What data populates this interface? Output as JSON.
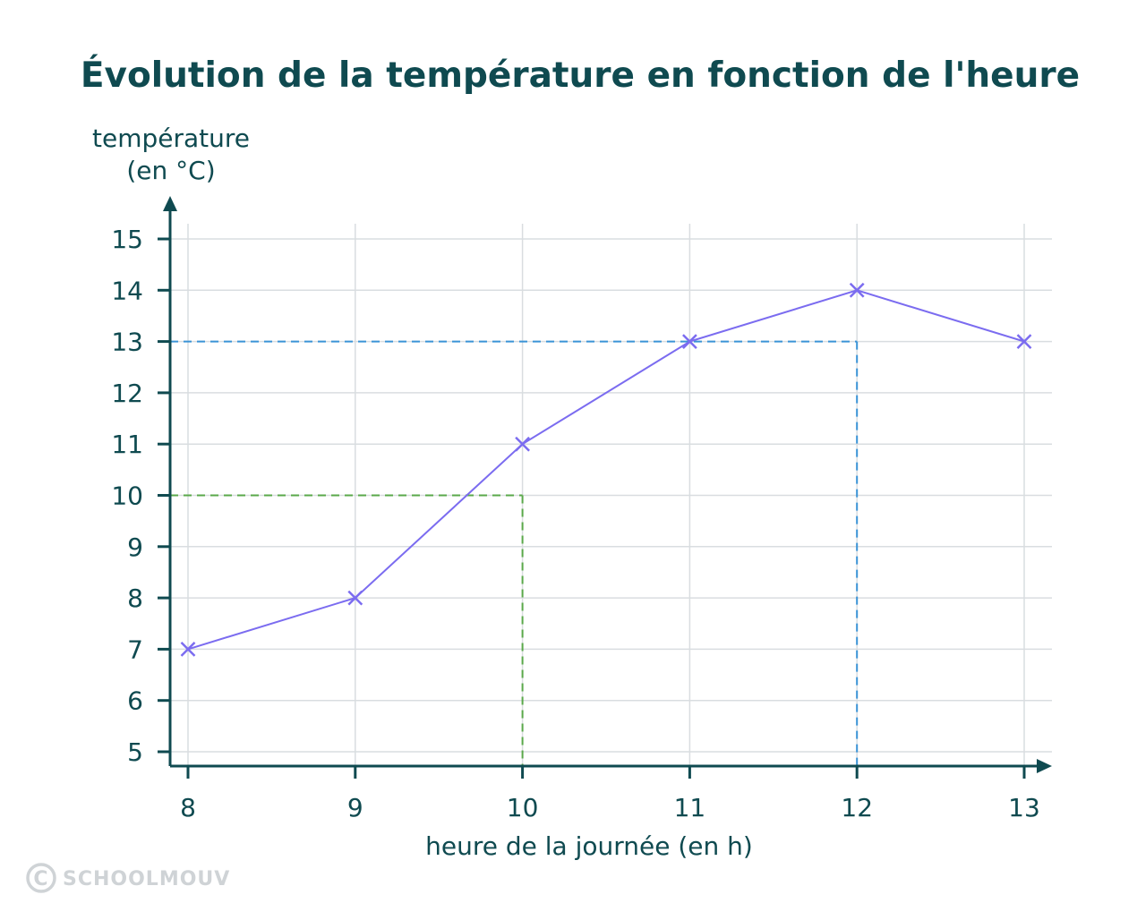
{
  "chart_data": {
    "type": "line",
    "title": "Évolution de la température en fonction de l'heure",
    "ylabel_line1": "température",
    "ylabel_line2": "(en °C)",
    "xlabel": "heure de la journée (en h)",
    "x": [
      8,
      9,
      10,
      11,
      12,
      13
    ],
    "values": [
      7,
      8,
      11,
      13,
      14,
      13
    ],
    "xlim": [
      8,
      13
    ],
    "ylim": [
      5,
      15
    ],
    "xticks": [
      8,
      9,
      10,
      11,
      12,
      13
    ],
    "yticks": [
      5,
      6,
      7,
      8,
      9,
      10,
      11,
      12,
      13,
      14,
      15
    ],
    "grid": true,
    "marker": "x",
    "series_color": "#7b6cf0",
    "annotations": [
      {
        "x": 10,
        "y": 10,
        "style": "dashed",
        "color": "#5aa84a"
      },
      {
        "x": 12,
        "y": 13,
        "style": "dashed",
        "color": "#3a93d6"
      }
    ]
  },
  "colors": {
    "axis": "#0f4a50",
    "grid": "#d9dde0",
    "title": "#0f4a50"
  },
  "watermark": {
    "symbol": "C",
    "text": "SCHOOLMOUV"
  }
}
